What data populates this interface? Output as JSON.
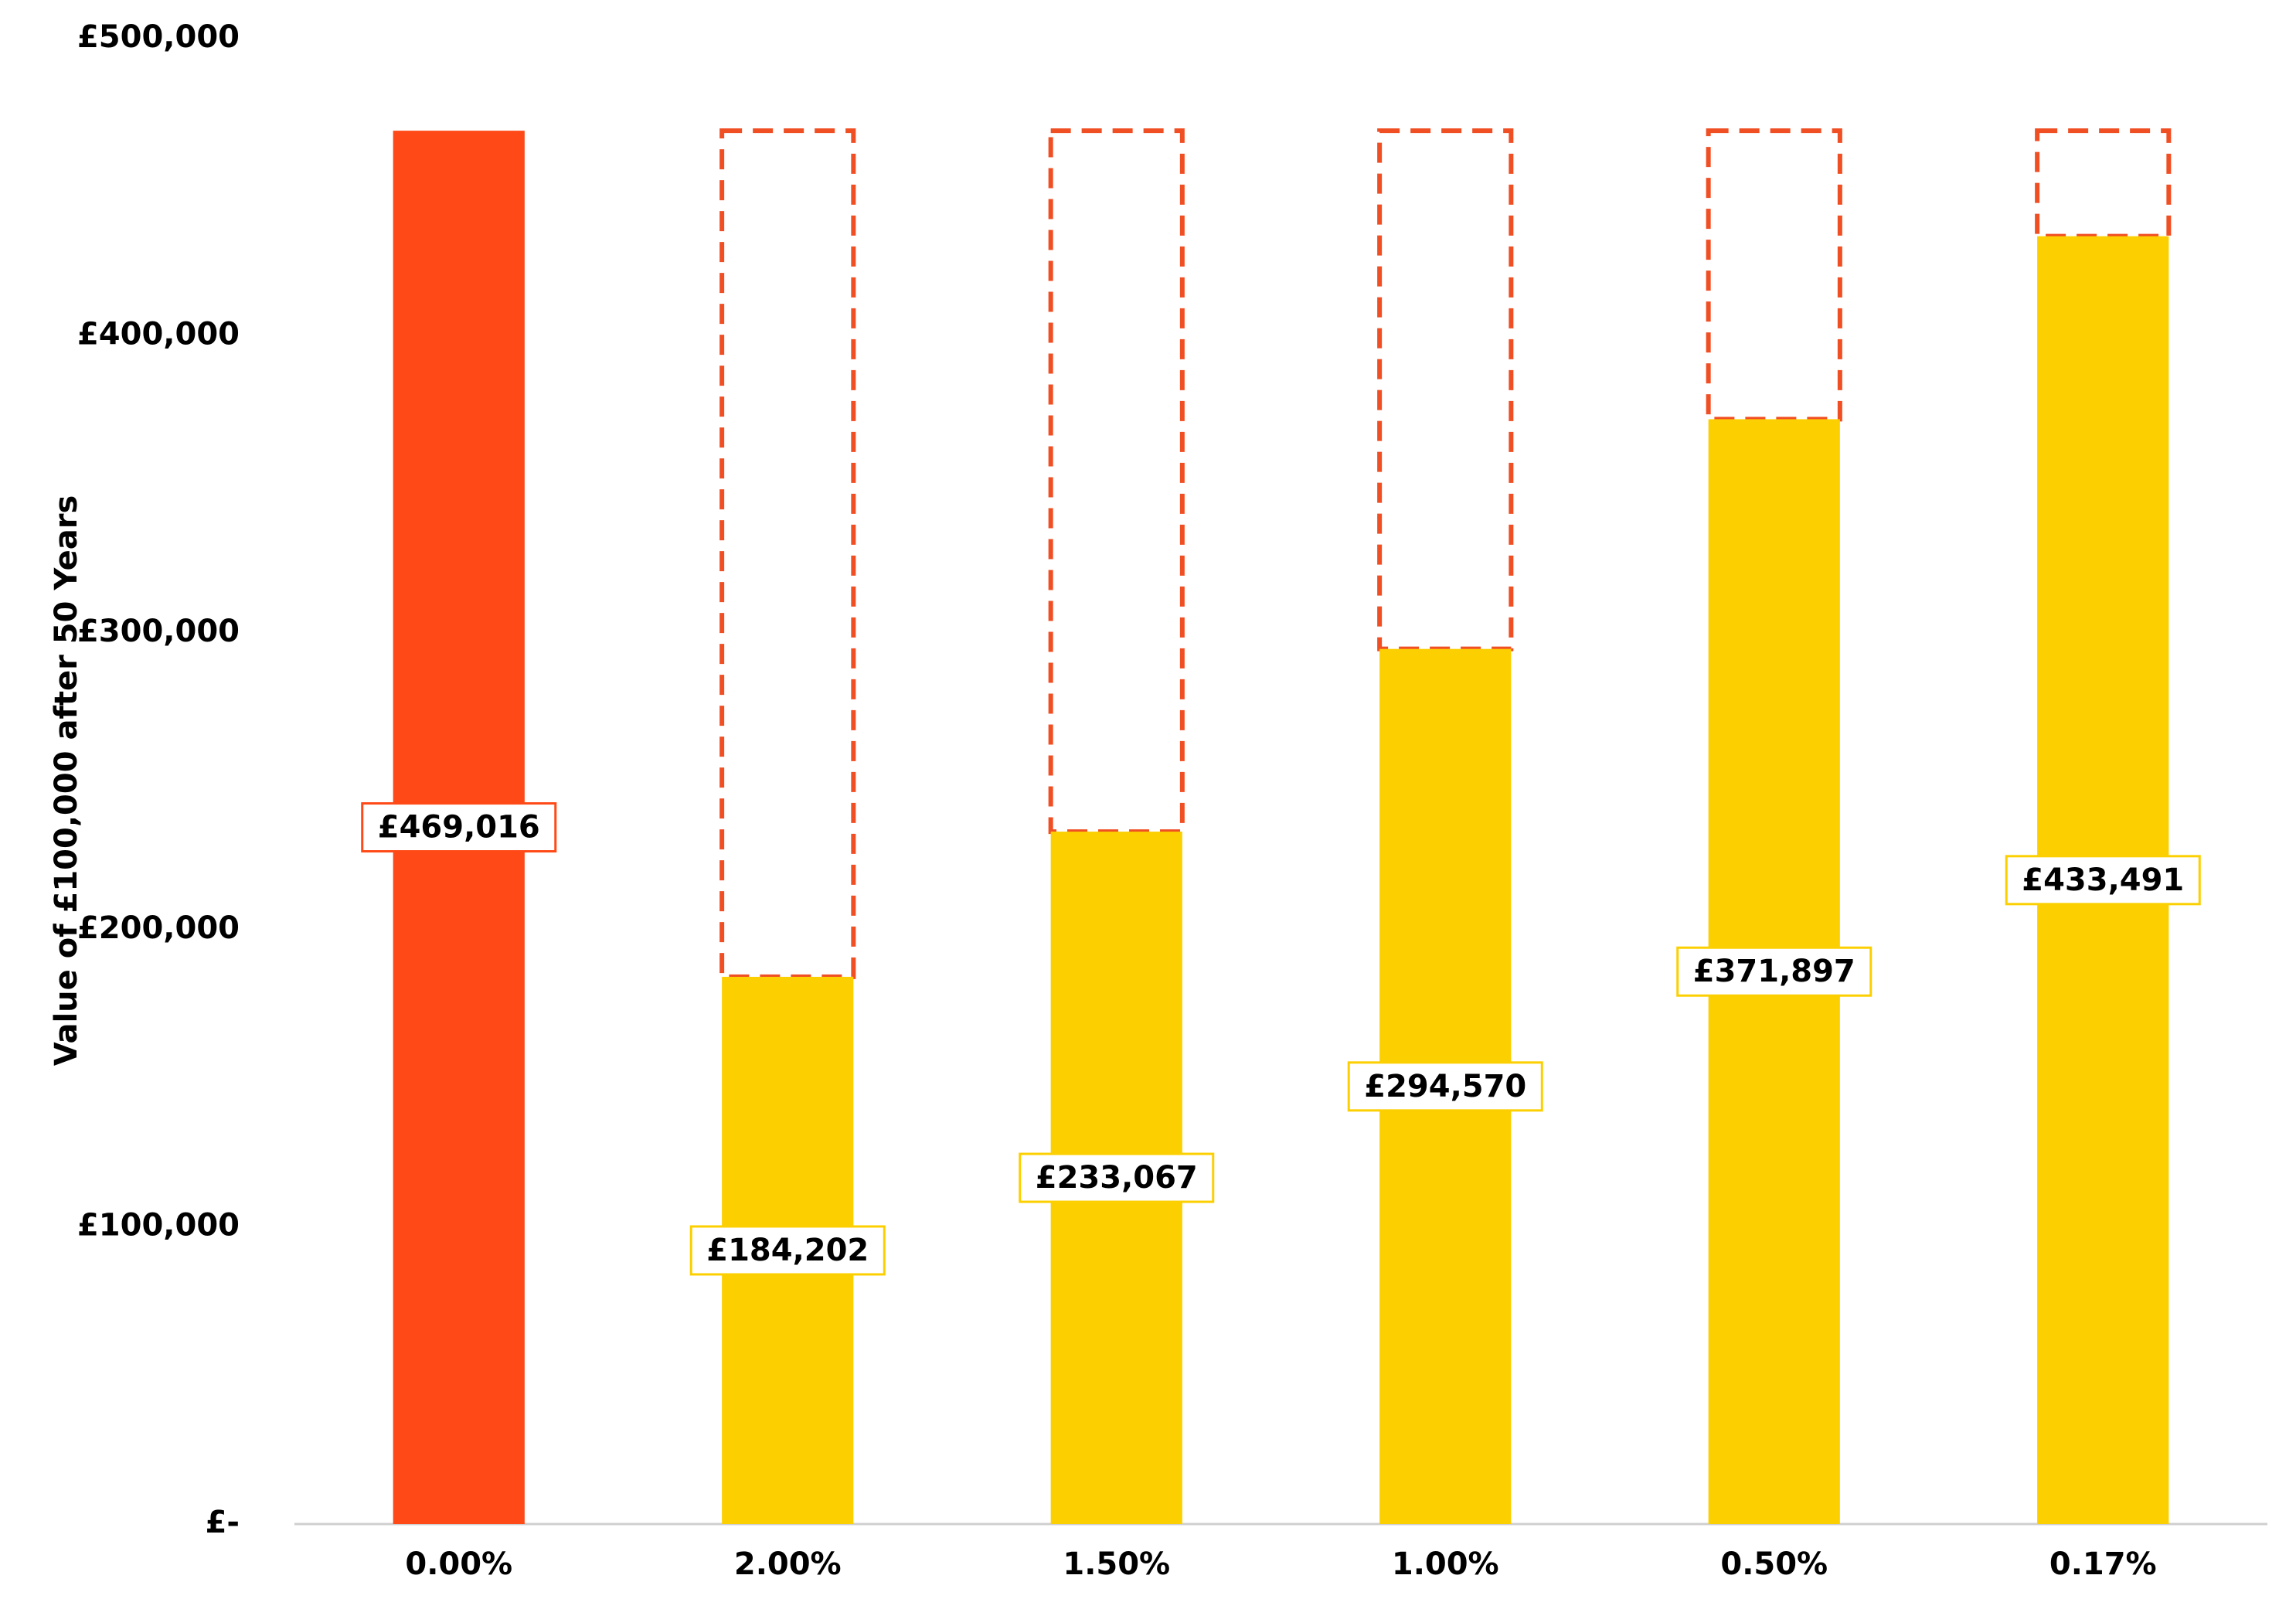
{
  "chart_data": {
    "type": "bar",
    "y_axis_label": "Value of £100,000 after 50 Years",
    "categories": [
      "0.00%",
      "2.00%",
      "1.50%",
      "1.00%",
      "0.50%",
      "0.17%"
    ],
    "values": [
      469016,
      184202,
      233067,
      294570,
      371897,
      433491
    ],
    "value_labels": [
      "£469,016",
      "£184,202",
      "£233,067",
      "£294,570",
      "£371,897",
      "£433,491"
    ],
    "colors": [
      "#ff4a17",
      "#fccf00",
      "#fccf00",
      "#fccf00",
      "#fccf00",
      "#fccf00"
    ],
    "ylim": [
      0,
      500000
    ],
    "yticks": [
      {
        "value": 0,
        "label": "£-"
      },
      {
        "value": 100000,
        "label": "£100,000"
      },
      {
        "value": 200000,
        "label": "£200,000"
      },
      {
        "value": 300000,
        "label": "£300,000"
      },
      {
        "value": 400000,
        "label": "£400,000"
      },
      {
        "value": 500000,
        "label": "£500,000"
      }
    ],
    "grid": false
  }
}
